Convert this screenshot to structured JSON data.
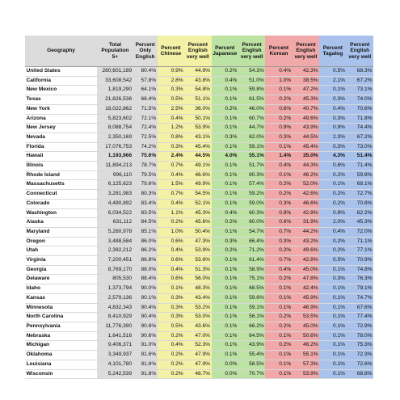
{
  "headers": [
    "Geography",
    "Total Population 5+",
    "Percent Only English",
    "Percent Chinese",
    "Percent English very well",
    "Percent Japanese",
    "Percent English very well",
    "Percent Korean",
    "Percent English very well",
    "Percent Tagalog",
    "Percent English very well"
  ],
  "colors": {
    "gray": "#dcdcdc",
    "yellow": "#f3f1a6",
    "green": "#bde3a4",
    "red": "#f0a8a8",
    "blue": "#a9c2ec"
  },
  "bold_row": "Hawaii",
  "rows": [
    [
      "United States",
      "280,601,189",
      "80.4%",
      "0.9%",
      "44.9%",
      "0.2%",
      "54.3%",
      "0.4%",
      "42.3%",
      "0.5%",
      "68.3%"
    ],
    [
      "California",
      "33,608,542",
      "57.8%",
      "2.8%",
      "43.8%",
      "0.4%",
      "51.0%",
      "1.0%",
      "38.5%",
      "2.1%",
      "67.2%"
    ],
    [
      "New Mexico",
      "1,819,290",
      "64.1%",
      "0.3%",
      "54.8%",
      "0.1%",
      "59.8%",
      "0.1%",
      "47.2%",
      "0.1%",
      "73.1%"
    ],
    [
      "Texas",
      "21,826,536",
      "66.4%",
      "0.5%",
      "51.1%",
      "0.1%",
      "61.5%",
      "0.2%",
      "45.3%",
      "0.3%",
      "74.0%"
    ],
    [
      "New York",
      "18,022,862",
      "71.5%",
      "2.5%",
      "36.0%",
      "0.2%",
      "46.0%",
      "0.6%",
      "40.7%",
      "0.4%",
      "70.6%"
    ],
    [
      "Arizona",
      "5,823,602",
      "72.1%",
      "0.4%",
      "50.1%",
      "0.1%",
      "60.7%",
      "0.2%",
      "49.6%",
      "0.3%",
      "71.8%"
    ],
    [
      "New Jersey",
      "8,088,754",
      "72.4%",
      "1.2%",
      "53.9%",
      "0.1%",
      "44.7%",
      "0.9%",
      "43.9%",
      "0.9%",
      "74.4%"
    ],
    [
      "Nevada",
      "2,350,169",
      "72.5%",
      "0.8%",
      "43.1%",
      "0.3%",
      "62.0%",
      "0.3%",
      "44.5%",
      "2.3%",
      "67.2%"
    ],
    [
      "Florida",
      "17,076,753",
      "74.2%",
      "0.3%",
      "45.4%",
      "0.1%",
      "59.1%",
      "0.1%",
      "45.4%",
      "0.3%",
      "73.0%"
    ],
    [
      "Hawaii",
      "1,193,966",
      "75.6%",
      "2.4%",
      "44.5%",
      "4.0%",
      "55.1%",
      "1.4%",
      "35.0%",
      "4.3%",
      "51.4%"
    ],
    [
      "Illinois",
      "11,894,213",
      "78.7%",
      "0.7%",
      "49.1%",
      "0.1%",
      "51.7%",
      "0.4%",
      "44.3%",
      "0.6%",
      "71.4%"
    ],
    [
      "Rhode Island",
      "996,110",
      "79.5%",
      "0.4%",
      "46.6%",
      "0.1%",
      "80.3%",
      "0.1%",
      "46.2%",
      "0.2%",
      "59.8%"
    ],
    [
      "Massachusetts",
      "6,125,623",
      "79.6%",
      "1.5%",
      "49.9%",
      "0.1%",
      "57.4%",
      "0.2%",
      "52.0%",
      "0.1%",
      "68.1%"
    ],
    [
      "Connecticut",
      "3,281,983",
      "80.3%",
      "0.7%",
      "54.5%",
      "0.1%",
      "59.2%",
      "0.2%",
      "42.6%",
      "0.2%",
      "72.7%"
    ],
    [
      "Colorado",
      "4,490,892",
      "83.4%",
      "0.4%",
      "52.1%",
      "0.1%",
      "59.0%",
      "0.3%",
      "46.6%",
      "0.2%",
      "70.8%"
    ],
    [
      "Washington",
      "6,034,522",
      "83.5%",
      "1.1%",
      "45.3%",
      "0.4%",
      "60.3%",
      "0.8%",
      "42.8%",
      "0.8%",
      "62.2%"
    ],
    [
      "Alaska",
      "631,112",
      "84.5%",
      "0.2%",
      "45.6%",
      "0.2%",
      "60.0%",
      "0.6%",
      "31.9%",
      "2.0%",
      "45.3%"
    ],
    [
      "Maryland",
      "5,260,978",
      "85.1%",
      "1.0%",
      "50.4%",
      "0.1%",
      "54.7%",
      "0.7%",
      "44.2%",
      "0.4%",
      "72.0%"
    ],
    [
      "Oregon",
      "3,488,584",
      "86.0%",
      "0.6%",
      "47.3%",
      "0.3%",
      "66.4%",
      "0.3%",
      "43.2%",
      "0.2%",
      "71.1%"
    ],
    [
      "Utah",
      "2,392,212",
      "86.2%",
      "0.4%",
      "53.9%",
      "0.2%",
      "71.2%",
      "0.2%",
      "49.6%",
      "0.2%",
      "77.1%"
    ],
    [
      "Virginia",
      "7,200,451",
      "86.8%",
      "0.6%",
      "53.6%",
      "0.1%",
      "61.4%",
      "0.7%",
      "42.8%",
      "0.5%",
      "70.9%"
    ],
    [
      "Georgia",
      "8,769,170",
      "88.0%",
      "0.4%",
      "51.3%",
      "0.1%",
      "58.9%",
      "0.4%",
      "45.0%",
      "0.1%",
      "74.8%"
    ],
    [
      "Delaware",
      "805,530",
      "88.4%",
      "0.6%",
      "56.0%",
      "0.1%",
      "75.1%",
      "0.2%",
      "47.8%",
      "0.3%",
      "76.3%"
    ],
    [
      "Idaho",
      "1,373,794",
      "90.0%",
      "0.1%",
      "48.3%",
      "0.1%",
      "68.5%",
      "0.1%",
      "42.4%",
      "0.1%",
      "79.1%"
    ],
    [
      "Kansas",
      "2,579,136",
      "90.1%",
      "0.3%",
      "43.4%",
      "0.1%",
      "59.6%",
      "0.1%",
      "45.9%",
      "0.1%",
      "74.7%"
    ],
    [
      "Minnesota",
      "4,832,343",
      "90.4%",
      "0.3%",
      "53.2%",
      "0.1%",
      "59.1%",
      "0.1%",
      "46.9%",
      "0.1%",
      "67.6%"
    ],
    [
      "North Carolina",
      "8,410,929",
      "90.4%",
      "0.3%",
      "53.0%",
      "0.1%",
      "56.1%",
      "0.2%",
      "53.5%",
      "0.1%",
      "77.4%"
    ],
    [
      "Pennsylvania",
      "11,776,390",
      "90.6%",
      "0.5%",
      "43.6%",
      "0.1%",
      "66.2%",
      "0.2%",
      "45.0%",
      "0.1%",
      "72.9%"
    ],
    [
      "Nebraska",
      "1,641,516",
      "90.6%",
      "0.2%",
      "47.0%",
      "0.1%",
      "64.5%",
      "0.1%",
      "50.6%",
      "0.1%",
      "78.0%"
    ],
    [
      "Michigan",
      "9,406,371",
      "91.0%",
      "0.4%",
      "52.3%",
      "0.1%",
      "43.9%",
      "0.2%",
      "46.2%",
      "0.1%",
      "75.3%"
    ],
    [
      "Oklahoma",
      "3,349,937",
      "91.6%",
      "0.2%",
      "47.9%",
      "0.1%",
      "55.4%",
      "0.1%",
      "55.1%",
      "0.1%",
      "72.3%"
    ],
    [
      "Louisiana",
      "4,101,780",
      "91.6%",
      "0.2%",
      "47.9%",
      "0.0%",
      "58.5%",
      "0.1%",
      "57.3%",
      "0.1%",
      "72.6%"
    ],
    [
      "Wisconsin",
      "5,242,539",
      "91.8%",
      "0.2%",
      "48.7%",
      "0.0%",
      "70.7%",
      "0.1%",
      "53.9%",
      "0.1%",
      "68.8%"
    ]
  ]
}
